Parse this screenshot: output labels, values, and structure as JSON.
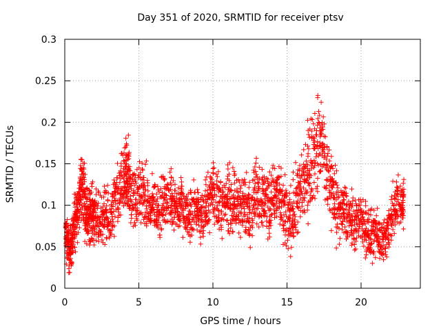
{
  "chart_data": {
    "type": "scatter",
    "title": "Day 351 of 2020, SRMTID for receiver ptsv",
    "xlabel": "GPS time / hours",
    "ylabel": "SRMTID / TECUs",
    "xlim": [
      0,
      24
    ],
    "ylim": [
      0,
      0.3
    ],
    "xticks": [
      0,
      5,
      10,
      15,
      20
    ],
    "xtick_labels": [
      "0",
      "5",
      "10",
      "15",
      "20"
    ],
    "yticks": [
      0,
      0.05,
      0.1,
      0.15,
      0.2,
      0.25,
      0.3
    ],
    "ytick_labels": [
      "0",
      "0.05",
      "0.1",
      "0.15",
      "0.2",
      "0.25",
      "0.3"
    ],
    "grid": true,
    "marker": "+",
    "marker_color": "#ff0000",
    "series": [
      {
        "name": "SRMTID",
        "x": [
          0.0,
          0.1,
          0.2,
          0.3,
          0.4,
          0.5,
          0.6,
          0.7,
          0.8,
          0.9,
          1.0,
          1.1,
          1.2,
          1.3,
          1.4,
          1.5,
          1.6,
          1.7,
          1.8,
          1.9,
          2.0,
          2.2,
          2.4,
          2.6,
          2.8,
          3.0,
          3.2,
          3.4,
          3.6,
          3.8,
          4.0,
          4.1,
          4.2,
          4.3,
          4.4,
          4.6,
          4.8,
          5.0,
          5.2,
          5.4,
          5.6,
          5.8,
          6.0,
          6.2,
          6.4,
          6.6,
          6.8,
          7.0,
          7.2,
          7.4,
          7.6,
          7.8,
          8.0,
          8.2,
          8.4,
          8.6,
          8.8,
          9.0,
          9.2,
          9.4,
          9.6,
          9.8,
          10.0,
          10.2,
          10.4,
          10.6,
          10.8,
          11.0,
          11.2,
          11.4,
          11.6,
          11.8,
          12.0,
          12.2,
          12.4,
          12.6,
          12.8,
          13.0,
          13.2,
          13.4,
          13.6,
          13.8,
          14.0,
          14.2,
          14.4,
          14.6,
          14.8,
          15.0,
          15.2,
          15.4,
          15.6,
          15.8,
          16.0,
          16.2,
          16.4,
          16.6,
          16.8,
          17.0,
          17.2,
          17.4,
          17.6,
          17.8,
          18.0,
          18.2,
          18.4,
          18.6,
          18.8,
          19.0,
          19.2,
          19.4,
          19.6,
          19.8,
          20.0,
          20.2,
          20.4,
          20.6,
          20.8,
          21.0,
          21.2,
          21.4,
          21.6,
          21.8,
          22.0,
          22.2,
          22.4,
          22.6,
          22.8
        ],
        "y": [
          0.08,
          0.06,
          0.05,
          0.045,
          0.05,
          0.06,
          0.07,
          0.08,
          0.09,
          0.1,
          0.11,
          0.12,
          0.13,
          0.11,
          0.1,
          0.09,
          0.085,
          0.09,
          0.095,
          0.09,
          0.085,
          0.08,
          0.085,
          0.09,
          0.085,
          0.08,
          0.09,
          0.1,
          0.11,
          0.12,
          0.125,
          0.13,
          0.14,
          0.13,
          0.12,
          0.11,
          0.105,
          0.11,
          0.12,
          0.11,
          0.1,
          0.095,
          0.1,
          0.1,
          0.095,
          0.1,
          0.105,
          0.11,
          0.11,
          0.105,
          0.1,
          0.1,
          0.095,
          0.09,
          0.085,
          0.09,
          0.1,
          0.095,
          0.09,
          0.085,
          0.1,
          0.11,
          0.12,
          0.115,
          0.105,
          0.095,
          0.1,
          0.11,
          0.105,
          0.1,
          0.095,
          0.1,
          0.105,
          0.1,
          0.095,
          0.1,
          0.11,
          0.12,
          0.115,
          0.11,
          0.105,
          0.1,
          0.11,
          0.115,
          0.11,
          0.1,
          0.09,
          0.085,
          0.08,
          0.09,
          0.1,
          0.11,
          0.12,
          0.13,
          0.14,
          0.15,
          0.16,
          0.17,
          0.18,
          0.17,
          0.15,
          0.13,
          0.12,
          0.11,
          0.1,
          0.095,
          0.09,
          0.09,
          0.085,
          0.08,
          0.075,
          0.08,
          0.085,
          0.08,
          0.07,
          0.065,
          0.06,
          0.065,
          0.06,
          0.055,
          0.06,
          0.07,
          0.08,
          0.09,
          0.1,
          0.1,
          0.105
        ]
      }
    ],
    "spread": [
      0.025,
      0.025,
      0.025,
      0.025,
      0.025,
      0.025,
      0.03,
      0.03,
      0.03,
      0.03,
      0.035,
      0.04,
      0.04,
      0.035,
      0.03,
      0.03,
      0.03,
      0.03,
      0.03,
      0.03,
      0.03,
      0.03,
      0.03,
      0.03,
      0.03,
      0.03,
      0.035,
      0.035,
      0.035,
      0.035,
      0.04,
      0.045,
      0.05,
      0.045,
      0.04,
      0.035,
      0.035,
      0.035,
      0.035,
      0.035,
      0.03,
      0.03,
      0.03,
      0.03,
      0.03,
      0.03,
      0.03,
      0.035,
      0.035,
      0.03,
      0.03,
      0.03,
      0.03,
      0.03,
      0.03,
      0.03,
      0.03,
      0.03,
      0.03,
      0.03,
      0.03,
      0.035,
      0.04,
      0.04,
      0.035,
      0.03,
      0.03,
      0.035,
      0.035,
      0.035,
      0.035,
      0.035,
      0.035,
      0.035,
      0.035,
      0.035,
      0.035,
      0.04,
      0.04,
      0.035,
      0.035,
      0.035,
      0.035,
      0.035,
      0.035,
      0.035,
      0.035,
      0.035,
      0.035,
      0.04,
      0.04,
      0.045,
      0.05,
      0.05,
      0.05,
      0.05,
      0.05,
      0.05,
      0.05,
      0.05,
      0.05,
      0.045,
      0.04,
      0.04,
      0.035,
      0.035,
      0.035,
      0.03,
      0.03,
      0.03,
      0.03,
      0.03,
      0.03,
      0.03,
      0.03,
      0.03,
      0.025,
      0.025,
      0.025,
      0.025,
      0.025,
      0.025,
      0.03,
      0.03,
      0.03,
      0.03,
      0.03
    ]
  }
}
